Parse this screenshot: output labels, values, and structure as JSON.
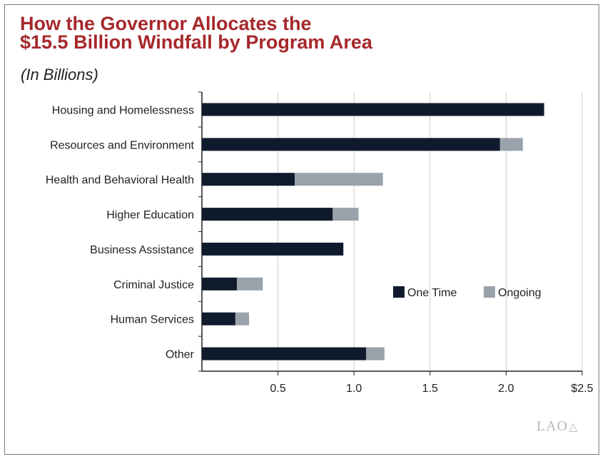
{
  "title_line1": "How the Governor Allocates the",
  "title_line2": "$15.5 Billion Windfall by Program Area",
  "subtitle": "(In Billions)",
  "logo": "LAO",
  "colors": {
    "title": "#a6282c",
    "one_time": "#0f1b2d",
    "ongoing": "#9aa2ab",
    "grid": "#cccccc"
  },
  "chart_data": {
    "type": "bar",
    "orientation": "horizontal",
    "stacked": true,
    "categories": [
      "Housing and Homelessness",
      "Resources and Environment",
      "Health and Behavioral Health",
      "Higher Education",
      "Business Assistance",
      "Criminal Justice",
      "Human Services",
      "Other"
    ],
    "series": [
      {
        "name": "One Time",
        "values": [
          2.25,
          1.96,
          0.61,
          0.86,
          0.93,
          0.23,
          0.22,
          1.08
        ]
      },
      {
        "name": "Ongoing",
        "values": [
          0,
          0.15,
          0.58,
          0.17,
          0,
          0.17,
          0.09,
          0.12
        ]
      }
    ],
    "xlim": [
      0,
      2.5
    ],
    "xticks": [
      0.5,
      1.0,
      1.5,
      2.0,
      2.5
    ],
    "xtick_labels": [
      "0.5",
      "1.0",
      "1.5",
      "2.0",
      "$2.5"
    ],
    "xlabel": "",
    "ylabel": "",
    "grid": "vertical",
    "legend_position": "right-center"
  }
}
